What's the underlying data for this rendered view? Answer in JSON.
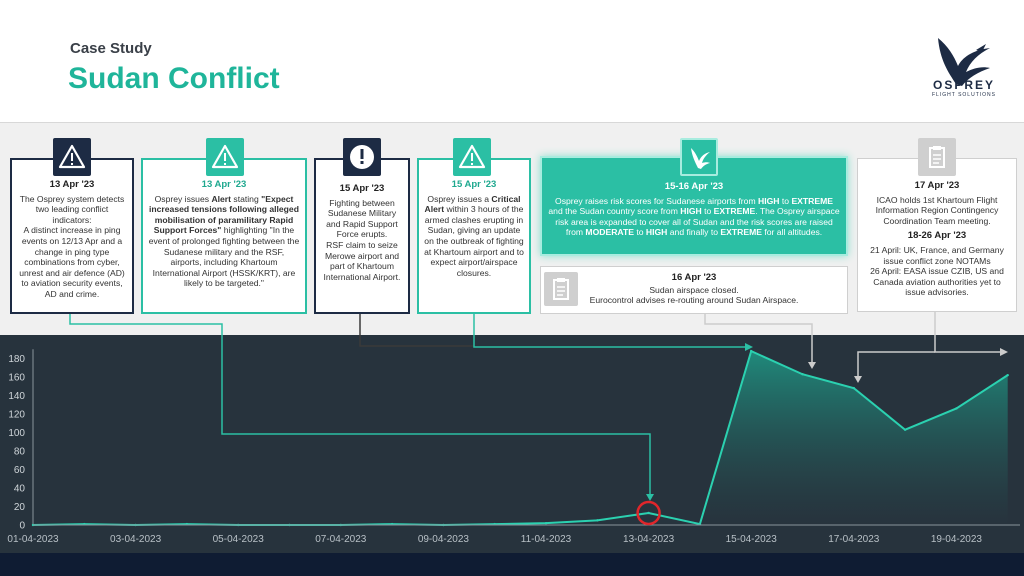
{
  "header": {
    "subtitle": "Case Study",
    "title": "Sudan Conflict"
  },
  "logo": {
    "name": "OSPREY",
    "tagline": "FLIGHT SOLUTIONS"
  },
  "cards": {
    "c1": {
      "date": "13 Apr '23",
      "p1": "The Osprey system detects two leading conflict indicators:",
      "p2": "A distinct increase in ping events on 12/13 Apr and a change in ping type combinations from cyber, unrest and air defence (AD) to aviation security events, AD and crime."
    },
    "c2": {
      "date": "13 Apr '23",
      "t1": "Osprey issues ",
      "b1": "Alert",
      "t2": " stating ",
      "b2": "\"Expect increased tensions following alleged mobilisation of paramilitary Rapid Support Forces\"",
      "t3": " highlighting \"In the event of prolonged fighting between the Sudanese military and the RSF, airports, including Khartoum International Airport (HSSK/KRT), are likely to be targeted.\""
    },
    "c3": {
      "date": "15 Apr '23",
      "p1": "Fighting between Sudanese Military and Rapid Support Force erupts.",
      "p2": "RSF claim to seize Merowe airport and part of Khartoum International Airport."
    },
    "c4": {
      "date": "15 Apr '23",
      "t1": "Osprey issues a ",
      "b1": "Critical Alert",
      "t2": " within 3 hours of the armed clashes erupting in Sudan, giving an update on the outbreak of fighting at Khartoum airport and to expect airport/airspace closures."
    },
    "c5": {
      "date": "15-16 Apr '23",
      "t1": "Osprey raises risk scores for Sudanese airports from ",
      "b1": "HIGH",
      "t2": " to ",
      "b2": "EXTREME",
      "t3": " and the Sudan country score from ",
      "b3": "HIGH",
      "t4": " to ",
      "b4": "EXTREME",
      "t5": ". The Osprey airspace risk area is expanded to cover all of Sudan and the risk scores are raised from ",
      "b5": "MODERATE",
      "t6": " to ",
      "b6": "HIGH",
      "t7": " and finally to ",
      "b7": "EXTREME",
      "t8": " for all altitudes."
    },
    "c6": {
      "date": "16 Apr '23",
      "p1": "Sudan airspace closed.",
      "p2": "Eurocontrol advises re-routing around Sudan Airspace."
    },
    "c7": {
      "date": "17 Apr '23",
      "p1": "ICAO holds 1st Khartoum Flight Information Region Contingency Coordination Team meeting.",
      "date2": "18-26 Apr '23",
      "p2": "21 April: UK, France, and Germany issue conflict zone NOTAMs",
      "p3": "26 April: EASA issue CZIB, US and Canada aviation authorities yet to issue advisories."
    }
  },
  "chart_data": {
    "type": "area",
    "x": [
      "01-04-2023",
      "02-04-2023",
      "03-04-2023",
      "04-04-2023",
      "05-04-2023",
      "06-04-2023",
      "07-04-2023",
      "08-04-2023",
      "09-04-2023",
      "10-04-2023",
      "11-04-2023",
      "12-04-2023",
      "13-04-2023",
      "14-04-2023",
      "15-04-2023",
      "16-04-2023",
      "17-04-2023",
      "18-04-2023",
      "19-04-2023",
      "20-04-2023"
    ],
    "values": [
      0,
      1,
      0,
      1,
      0,
      0,
      0,
      1,
      0,
      1,
      2,
      5,
      13,
      1,
      188,
      163,
      148,
      103,
      126,
      162
    ],
    "tick_labels": [
      "01-04-2023",
      "03-04-2023",
      "05-04-2023",
      "07-04-2023",
      "09-04-2023",
      "11-04-2023",
      "13-04-2023",
      "15-04-2023",
      "17-04-2023",
      "19-04-2023"
    ],
    "y_ticks": [
      0,
      20,
      40,
      60,
      80,
      100,
      120,
      140,
      160,
      180
    ],
    "ylim": [
      0,
      190
    ],
    "highlight_point": "13-04-2023",
    "colors": {
      "line": "#2bd1b0",
      "fill_top": "#1f8f7f",
      "fill_bottom": "#27333d",
      "highlight": "#e0262b",
      "connector": "#2bbfa4",
      "connector_dark": "#3a3a3a",
      "connector_grey": "#cccccc"
    }
  }
}
